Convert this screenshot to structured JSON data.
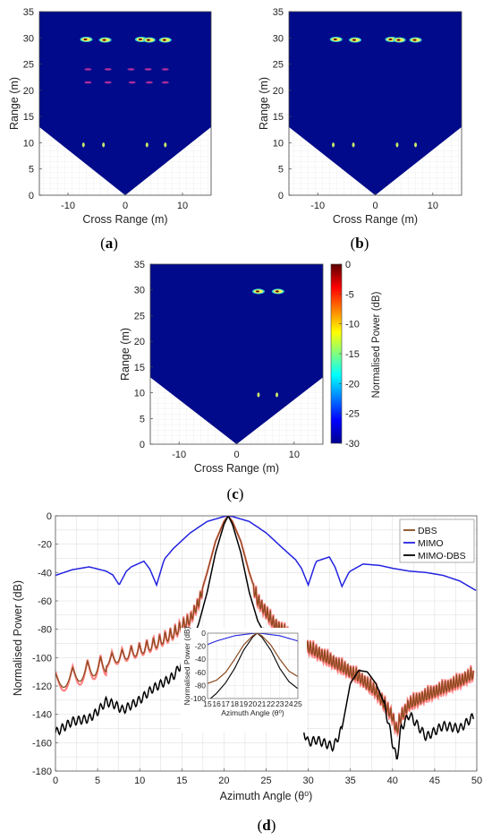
{
  "colors": {
    "background_field": "#000a8a",
    "dbs": "#8b4a1e",
    "dbs_ripple": "#ff1a1a",
    "mimo": "#2323e0",
    "mimo_dbs": "#000000",
    "target_yellow": "#f0f05a",
    "target_magenta": "#e23aa0"
  },
  "panels": [
    {
      "id": "a",
      "label_prefix": "(",
      "label_letter": "a",
      "label_suffix": ")",
      "xlabel": "Cross Range (m)",
      "ylabel": "Range (m)",
      "xlim": [
        -15,
        15
      ],
      "ylim": [
        0,
        35
      ],
      "xticks": [
        "-10",
        "0",
        "10"
      ],
      "yticks": [
        "0",
        "5",
        "10",
        "15",
        "20",
        "25",
        "30",
        "35"
      ],
      "targets_bright": [
        [
          -6.8,
          29.7
        ],
        [
          -3.5,
          29.6
        ],
        [
          2.8,
          29.7
        ],
        [
          4.2,
          29.6
        ],
        [
          7.0,
          29.6
        ]
      ],
      "targets_faint": [
        [
          -6.5,
          24.0
        ],
        [
          -6.5,
          21.5
        ],
        [
          -3.0,
          24.0
        ],
        [
          -3.0,
          21.5
        ],
        [
          1.0,
          24.0
        ],
        [
          1.2,
          21.5
        ],
        [
          4.0,
          24.0
        ],
        [
          4.2,
          21.5
        ],
        [
          7.0,
          24.0
        ],
        [
          7.0,
          21.5
        ]
      ],
      "targets_near": [
        [
          -7.3,
          9.6
        ],
        [
          -3.8,
          9.6
        ],
        [
          3.8,
          9.6
        ],
        [
          7.0,
          9.6
        ]
      ]
    },
    {
      "id": "b",
      "label_prefix": "(",
      "label_letter": "b",
      "label_suffix": ")",
      "xlabel": "Cross Range (m)",
      "ylabel": "Range (m)",
      "xlim": [
        -15,
        15
      ],
      "ylim": [
        0,
        35
      ],
      "xticks": [
        "-10",
        "0",
        "10"
      ],
      "yticks": [
        "0",
        "5",
        "10",
        "15",
        "20",
        "25",
        "30",
        "35"
      ],
      "targets_bright": [
        [
          -6.8,
          29.7
        ],
        [
          -3.5,
          29.6
        ],
        [
          2.8,
          29.7
        ],
        [
          4.2,
          29.6
        ],
        [
          7.0,
          29.6
        ]
      ],
      "targets_faint": [],
      "targets_near": [
        [
          -7.3,
          9.6
        ],
        [
          -3.8,
          9.6
        ],
        [
          3.8,
          9.6
        ],
        [
          7.0,
          9.6
        ]
      ]
    },
    {
      "id": "c",
      "label_prefix": "(",
      "label_letter": "c",
      "label_suffix": ")",
      "xlabel": "Cross Range (m)",
      "ylabel": "Range (m)",
      "xlim": [
        -15,
        15
      ],
      "ylim": [
        0,
        35
      ],
      "xticks": [
        "-10",
        "0",
        "10"
      ],
      "yticks": [
        "0",
        "5",
        "10",
        "15",
        "20",
        "25",
        "30",
        "35"
      ],
      "targets_bright": [
        [
          3.8,
          29.7
        ],
        [
          7.2,
          29.7
        ]
      ],
      "targets_faint": [],
      "targets_near": [
        [
          3.8,
          9.6
        ],
        [
          7.0,
          9.6
        ]
      ],
      "colorbar": {
        "label": "Normalised Power (dB)",
        "ticks": [
          "0",
          "-5",
          "-10",
          "-15",
          "-20",
          "-25",
          "-30"
        ],
        "range": [
          -30,
          0
        ]
      }
    }
  ],
  "chart_data": {
    "type": "line",
    "label_prefix": "(",
    "label_letter": "d",
    "label_suffix": ")",
    "xlabel": "Azimuth Angle (θ⁰)",
    "ylabel": "Normalised Power (dB)",
    "xlim": [
      0,
      50
    ],
    "ylim": [
      -180,
      0
    ],
    "xticks": [
      "0",
      "5",
      "10",
      "15",
      "20",
      "25",
      "30",
      "35",
      "40",
      "45",
      "50"
    ],
    "yticks": [
      "0",
      "-20",
      "-40",
      "-60",
      "-80",
      "-100",
      "-120",
      "-140",
      "-160",
      "-180"
    ],
    "grid": true,
    "legend_position": "top-right",
    "series": [
      {
        "name": "DBS",
        "x": [
          0,
          2,
          4,
          6,
          8,
          10,
          12,
          14,
          16,
          17,
          18,
          19,
          20,
          20.5,
          21,
          22,
          23,
          24,
          26,
          28,
          30,
          32,
          34,
          36,
          38,
          40,
          40.5,
          41,
          42,
          44,
          46,
          48,
          49.5
        ],
        "y": [
          -115,
          -111,
          -106,
          -102,
          -98,
          -94,
          -89,
          -82,
          -72,
          -60,
          -40,
          -18,
          -4,
          0,
          -4,
          -18,
          -40,
          -58,
          -75,
          -84,
          -91,
          -98,
          -105,
          -112,
          -122,
          -140,
          -150,
          -140,
          -131,
          -125,
          -120,
          -115,
          -110
        ]
      },
      {
        "name": "MIMO",
        "x": [
          0,
          2,
          4,
          6,
          7.5,
          9,
          10.5,
          12,
          13,
          14,
          16,
          18,
          20,
          20.5,
          21,
          23,
          25,
          27,
          28.5,
          30,
          31,
          32.5,
          34,
          35,
          36.5,
          38.5,
          40,
          42,
          44,
          46,
          48,
          50
        ],
        "y": [
          -42,
          -38,
          -36,
          -39,
          -44,
          -36,
          -32,
          -44,
          -30,
          -23,
          -12,
          -4,
          -0.5,
          0,
          -0.5,
          -4,
          -12,
          -23,
          -31,
          -44,
          -32,
          -29,
          -45,
          -39,
          -34,
          -35,
          -37,
          -39,
          -40,
          -42,
          -46,
          -53
        ],
        "dip_angles": [
          7.6,
          12.0,
          30.0,
          34.0
        ]
      },
      {
        "name": "MIMO-DBS",
        "x": [
          0,
          2,
          4,
          5,
          6,
          7,
          8,
          10,
          11.5,
          13,
          14,
          15,
          16,
          17,
          18,
          19,
          20,
          20.5,
          21,
          22,
          23,
          24,
          26,
          27.5,
          29,
          30,
          31,
          33,
          34,
          35,
          36,
          37,
          38,
          39,
          40,
          40.5,
          41,
          42,
          44,
          46,
          48,
          49.5
        ],
        "y": [
          -153,
          -145,
          -143,
          -138,
          -131,
          -133,
          -137,
          -130,
          -122,
          -117,
          -113,
          -104,
          -92,
          -76,
          -54,
          -26,
          -6,
          0,
          -6,
          -26,
          -54,
          -74,
          -96,
          -118,
          -145,
          -160,
          -158,
          -163,
          -150,
          -118,
          -109,
          -110,
          -118,
          -132,
          -160,
          -172,
          -150,
          -140,
          -156,
          -148,
          -150,
          -142
        ]
      }
    ],
    "inset": {
      "xlabel": "Azimuth Angle (θ⁰)",
      "ylabel": "Normalised Power (dB)",
      "xlim": [
        15,
        25
      ],
      "ylim": [
        -100,
        0
      ],
      "xticks": [
        "15",
        "16",
        "17",
        "18",
        "19",
        "20",
        "21",
        "22",
        "23",
        "24",
        "25"
      ],
      "yticks": [
        "0",
        "-20",
        "-40",
        "-60",
        "-80",
        "-100"
      ]
    }
  }
}
